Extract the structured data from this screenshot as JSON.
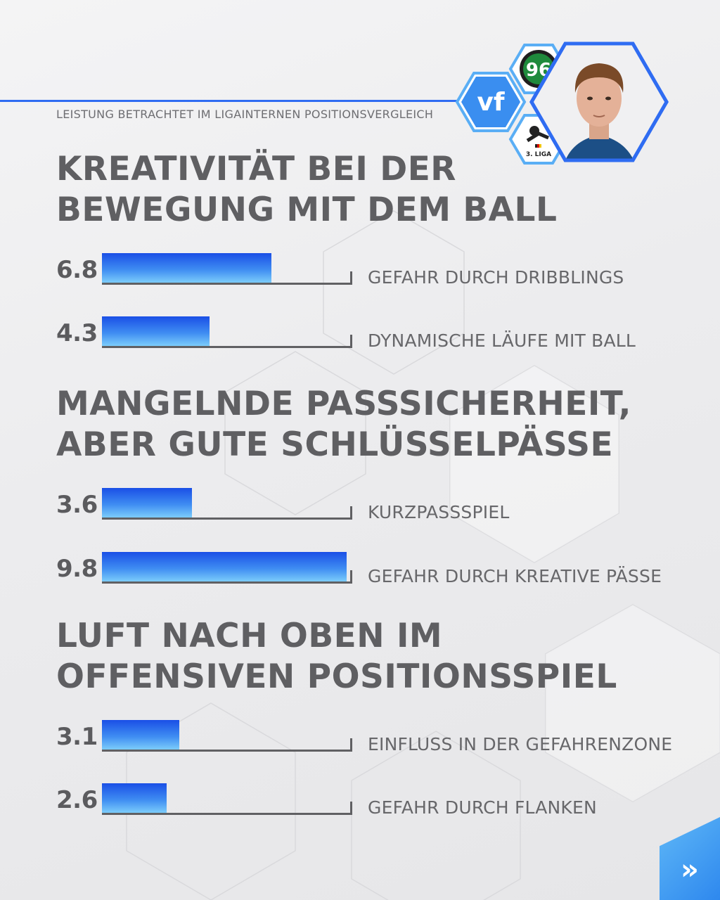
{
  "header": {
    "subtitle": "LEISTUNG BETRACHTET IM LIGAINTERNEN POSITIONSVERGLEICH",
    "brand_logo_text": "vf",
    "club_logo_text": "96",
    "league_logo_text": "3. LIGA"
  },
  "chart_data": {
    "type": "bar",
    "orientation": "horizontal",
    "xlim": [
      0,
      10
    ],
    "grid": false,
    "sections": [
      {
        "title": "KREATIVITÄT BEI DER BEWEGUNG MIT DEM BALL",
        "metrics": [
          {
            "label": "GEFAHR DURCH DRIBBLINGS",
            "value": 6.8
          },
          {
            "label": "DYNAMISCHE LÄUFE MIT BALL",
            "value": 4.3
          }
        ]
      },
      {
        "title": "MANGELNDE PASSSICHERHEIT, ABER GUTE SCHLÜSSELPÄSSE",
        "metrics": [
          {
            "label": "KURZPASSSPIEL",
            "value": 3.6
          },
          {
            "label": "GEFAHR DURCH KREATIVE PÄSSE",
            "value": 9.8
          }
        ]
      },
      {
        "title": "LUFT NACH OBEN IM OFFENSIVEN POSITIONSSPIEL",
        "metrics": [
          {
            "label": "EINFLUSS IN DER GEFAHRENZONE",
            "value": 3.1
          },
          {
            "label": "GEFAHR DURCH FLANKEN",
            "value": 2.6
          }
        ]
      }
    ]
  },
  "colors": {
    "accent": "#2f6cf2",
    "bar_top": "#1a4fe6",
    "bar_bottom": "#7fd0fb",
    "text": "#5f5f62"
  },
  "icons": {
    "next": "double-chevron-right-icon",
    "player": "player-portrait-icon"
  }
}
